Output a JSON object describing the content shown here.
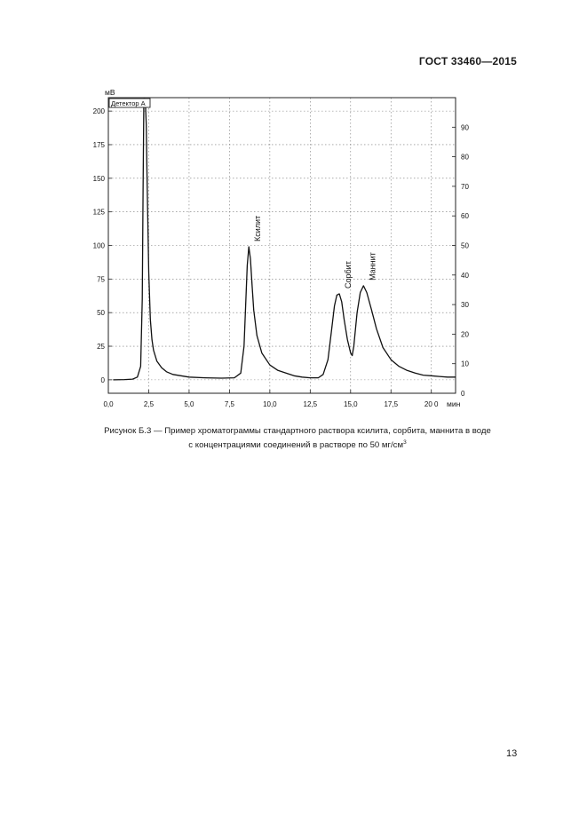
{
  "header": {
    "doc_code": "ГОСТ 33460—2015"
  },
  "chart_data": {
    "type": "line",
    "ylabel": "мВ",
    "xlabel": "мин",
    "detector_label": "Детектор А",
    "xlim": [
      0,
      21.5
    ],
    "ylim": [
      -10,
      210
    ],
    "ylim_right": [
      0,
      100
    ],
    "x_ticks": [
      0,
      2.5,
      5,
      7.5,
      10,
      12.5,
      15,
      17.5,
      20
    ],
    "x_tick_labels": [
      "0,0",
      "2,5",
      "5,0",
      "7,5",
      "10,0",
      "12,5",
      "15,0",
      "17,5",
      "20 0"
    ],
    "y_ticks": [
      0,
      25,
      50,
      75,
      100,
      125,
      150,
      175,
      200
    ],
    "y_tick_labels": [
      "0",
      "25",
      "50",
      "75",
      "100",
      "125",
      "150",
      "175",
      "200"
    ],
    "y_right_ticks": [
      0,
      10,
      20,
      30,
      40,
      50,
      60,
      70,
      80,
      90
    ],
    "y_right_tick_labels": [
      "0",
      "10",
      "20",
      "30",
      "40",
      "50",
      "60",
      "70",
      "80",
      "90"
    ],
    "grid": true,
    "peaks": [
      {
        "name": "Ксилит",
        "x": 8.7,
        "y": 99
      },
      {
        "name": "Сорбит",
        "x": 14.3,
        "y": 64
      },
      {
        "name": "Маннит",
        "x": 15.8,
        "y": 70
      }
    ],
    "series": [
      {
        "x": [
          0.3,
          1.0,
          1.5,
          1.8,
          2.0,
          2.1,
          2.15,
          2.2,
          2.25,
          2.3,
          2.35,
          2.4,
          2.5,
          2.6,
          2.7,
          2.8,
          3.0,
          3.3,
          3.6,
          4.0,
          4.5,
          5.0,
          6.0,
          7.0,
          7.8,
          8.2,
          8.4,
          8.5,
          8.6,
          8.7,
          8.8,
          8.9,
          9.0,
          9.2,
          9.5,
          10.0,
          10.5,
          11.0,
          11.5,
          12.0,
          12.5,
          13.0,
          13.3,
          13.6,
          13.8,
          14.0,
          14.15,
          14.3,
          14.45,
          14.6,
          14.8,
          15.0,
          15.1,
          15.2,
          15.4,
          15.6,
          15.8,
          16.0,
          16.3,
          16.6,
          17.0,
          17.5,
          18.0,
          18.5,
          19.0,
          19.5,
          20.0,
          20.5,
          21.0,
          21.5
        ],
        "y": [
          0,
          0.2,
          0.5,
          2,
          10,
          60,
          140,
          210,
          210,
          205,
          190,
          150,
          80,
          45,
          30,
          22,
          14,
          9,
          6,
          4,
          3,
          2,
          1.5,
          1.2,
          1.5,
          5,
          25,
          55,
          85,
          99,
          90,
          70,
          52,
          33,
          20,
          11,
          7,
          5,
          3,
          2,
          1.5,
          1.5,
          4,
          15,
          35,
          55,
          63,
          64,
          58,
          45,
          30,
          20,
          18,
          25,
          50,
          65,
          70,
          65,
          52,
          38,
          24,
          15,
          10,
          7,
          5,
          3.5,
          3,
          2.5,
          2,
          2
        ]
      }
    ]
  },
  "caption": {
    "line1": "Рисунок Б.3 — Пример хроматограммы стандартного раствора ксилита, сорбита, маннита в воде",
    "line2": "с концентрациями соединений в растворе по 50 мг/см",
    "line2_sup": "3"
  },
  "page_number": "13"
}
